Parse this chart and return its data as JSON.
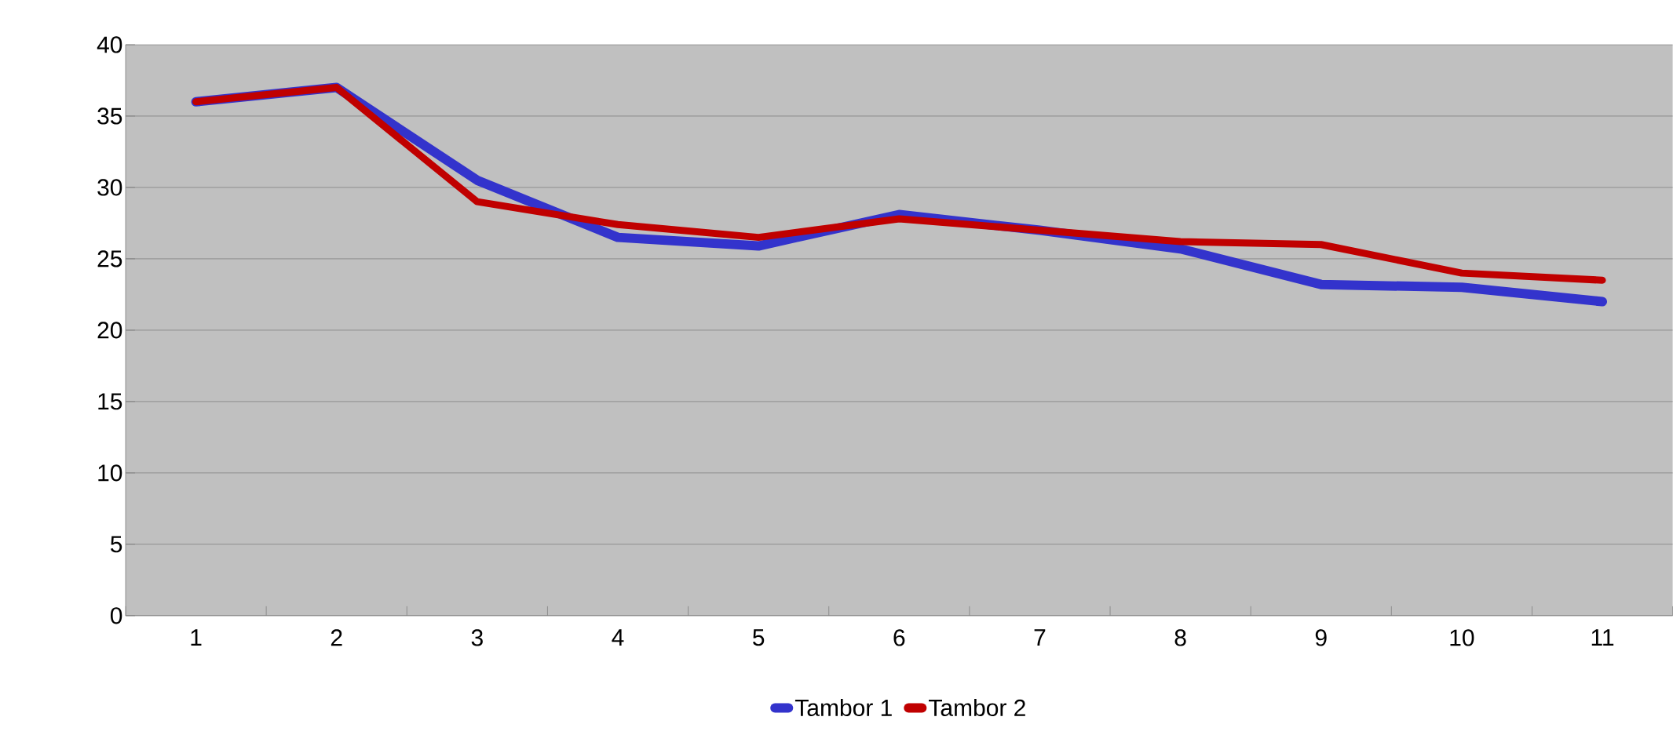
{
  "chart_data": {
    "type": "line",
    "categories": [
      "1",
      "2",
      "3",
      "4",
      "5",
      "6",
      "7",
      "8",
      "9",
      "10",
      "11"
    ],
    "series": [
      {
        "name": "Tambor 1",
        "color": "#3333cc",
        "values": [
          36,
          37,
          30.5,
          26.5,
          25.9,
          28.1,
          27,
          25.7,
          23.2,
          23,
          22
        ]
      },
      {
        "name": "Tambor 2",
        "color": "#c00000",
        "values": [
          36,
          37,
          29,
          27.4,
          26.5,
          27.8,
          27,
          26.2,
          26,
          24,
          23.5
        ]
      }
    ],
    "ylim": [
      0,
      40
    ],
    "yticks": [
      0,
      5,
      10,
      15,
      20,
      25,
      30,
      35,
      40
    ],
    "grid": "y",
    "legend": "bottom",
    "marker": "none",
    "line_style": "solid"
  }
}
